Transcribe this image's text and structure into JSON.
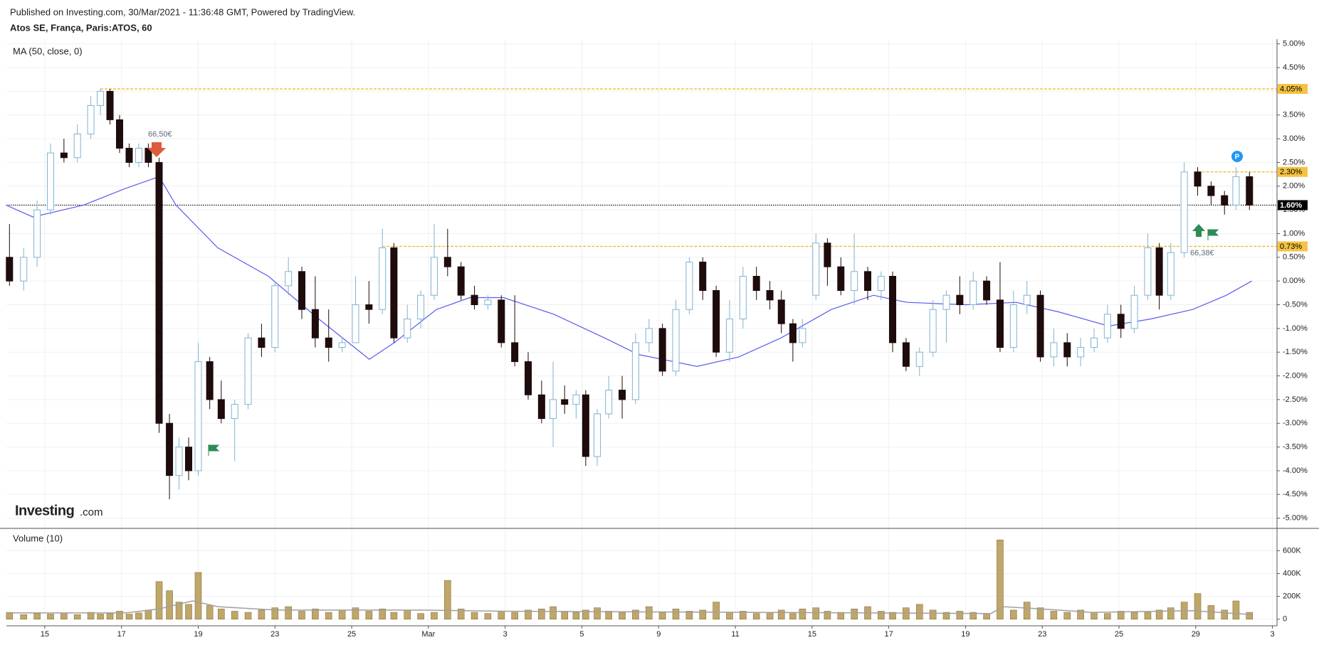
{
  "chart_data": {
    "type": "candlestick",
    "subtitle": "Published on Investing.com, 30/Mar/2021 - 11:36:48 GMT, Powered by TradingView.",
    "title": "Atos SE, França, Paris:ATOS, 60",
    "logo": [
      "Investing",
      ".com"
    ],
    "grid": true,
    "xlim": [
      -1,
      32.1
    ],
    "xticks": [
      {
        "value": 0,
        "label": "15"
      },
      {
        "value": 2,
        "label": "17"
      },
      {
        "value": 4,
        "label": "19"
      },
      {
        "value": 6,
        "label": "23"
      },
      {
        "value": 8,
        "label": "25"
      },
      {
        "value": 10,
        "label": "Mar"
      },
      {
        "value": 12,
        "label": "3"
      },
      {
        "value": 14,
        "label": "5"
      },
      {
        "value": 16,
        "label": "9"
      },
      {
        "value": 18,
        "label": "11"
      },
      {
        "value": 20,
        "label": "15"
      },
      {
        "value": 22,
        "label": "17"
      },
      {
        "value": 24,
        "label": "19"
      },
      {
        "value": 26,
        "label": "23"
      },
      {
        "value": 28,
        "label": "25"
      },
      {
        "value": 30,
        "label": "29"
      },
      {
        "value": 32,
        "label": "3"
      }
    ],
    "ylim": [
      -5.2,
      5.1
    ],
    "yticks": [
      {
        "value": 5,
        "label": "5.00%"
      },
      {
        "value": 4.5,
        "label": "4.50%"
      },
      {
        "value": 4,
        "label": "4.00%"
      },
      {
        "value": 3.5,
        "label": "3.50%"
      },
      {
        "value": 3,
        "label": "3.00%"
      },
      {
        "value": 2.5,
        "label": "2.50%"
      },
      {
        "value": 2,
        "label": "2.00%"
      },
      {
        "value": 1.5,
        "label": "1.50%"
      },
      {
        "value": 1,
        "label": "1.00%"
      },
      {
        "value": 0.5,
        "label": "0.50%"
      },
      {
        "value": 0,
        "label": "0.00%"
      },
      {
        "value": -0.5,
        "label": "-0.50%"
      },
      {
        "value": -1,
        "label": "-1.00%"
      },
      {
        "value": -1.5,
        "label": "-1.50%"
      },
      {
        "value": -2,
        "label": "-2.00%"
      },
      {
        "value": -2.5,
        "label": "-2.50%"
      },
      {
        "value": -3,
        "label": "-3.00%"
      },
      {
        "value": -3.5,
        "label": "-3.50%"
      },
      {
        "value": -4,
        "label": "-4.00%"
      },
      {
        "value": -4.5,
        "label": "-4.50%"
      },
      {
        "value": -5,
        "label": "-5.00%"
      }
    ],
    "up_color": "#ffffff",
    "down_color": "#1e0b0b",
    "wick_color": "#7fb3d5",
    "candles": {
      "x": [
        -0.92,
        -0.55,
        -0.2,
        0.15,
        0.5,
        0.85,
        1.2,
        1.45,
        1.7,
        1.95,
        2.2,
        2.45,
        2.7,
        2.98,
        3.25,
        3.5,
        3.75,
        4.0,
        4.3,
        4.6,
        4.95,
        5.3,
        5.65,
        6.0,
        6.35,
        6.7,
        7.05,
        7.4,
        7.75,
        8.1,
        8.45,
        8.8,
        9.1,
        9.45,
        9.8,
        10.15,
        10.5,
        10.85,
        11.2,
        11.55,
        11.9,
        12.25,
        12.6,
        12.95,
        13.25,
        13.55,
        13.85,
        14.1,
        14.4,
        14.7,
        15.05,
        15.4,
        15.75,
        16.1,
        16.45,
        16.8,
        17.15,
        17.5,
        17.85,
        18.2,
        18.55,
        18.9,
        19.2,
        19.5,
        19.75,
        20.1,
        20.4,
        20.75,
        21.1,
        21.45,
        21.8,
        22.1,
        22.45,
        22.8,
        23.15,
        23.5,
        23.85,
        24.2,
        24.55,
        24.9,
        25.25,
        25.6,
        25.95,
        26.3,
        26.65,
        27.0,
        27.35,
        27.7,
        28.05,
        28.4,
        28.75,
        29.05,
        29.35,
        29.7,
        30.05,
        30.4,
        30.75,
        31.05,
        31.4
      ],
      "open": [
        0.5,
        0.0,
        0.5,
        1.5,
        2.7,
        2.6,
        3.1,
        3.7,
        4.0,
        3.4,
        2.8,
        2.5,
        2.8,
        2.5,
        -3.0,
        -4.1,
        -3.5,
        -4.0,
        -1.7,
        -2.5,
        -2.9,
        -2.6,
        -1.2,
        -1.4,
        -0.1,
        0.2,
        -0.6,
        -1.2,
        -1.4,
        -1.3,
        -0.5,
        -0.6,
        0.7,
        -1.2,
        -0.8,
        -0.3,
        0.5,
        0.3,
        -0.3,
        -0.5,
        -0.4,
        -1.3,
        -1.7,
        -2.4,
        -2.9,
        -2.5,
        -2.6,
        -2.4,
        -3.7,
        -2.8,
        -2.3,
        -2.5,
        -1.3,
        -1.0,
        -1.9,
        -0.6,
        0.4,
        -0.2,
        -1.5,
        -0.8,
        0.1,
        -0.2,
        -0.4,
        -0.9,
        -1.3,
        -0.3,
        0.8,
        0.3,
        -0.2,
        0.2,
        -0.2,
        0.1,
        -1.3,
        -1.8,
        -1.5,
        -0.6,
        -0.3,
        -0.5,
        0.0,
        -0.4,
        -1.4,
        -0.5,
        -0.3,
        -1.6,
        -1.3,
        -1.6,
        -1.4,
        -1.2,
        -0.7,
        -1.0,
        -0.3,
        0.7,
        -0.3,
        0.6,
        2.3,
        2.0,
        1.8,
        1.6,
        2.2
      ],
      "high": [
        1.2,
        0.7,
        1.7,
        2.9,
        3.0,
        3.3,
        3.9,
        4.05,
        4.05,
        3.5,
        2.9,
        2.9,
        2.9,
        2.6,
        -2.8,
        -3.3,
        -3.3,
        -1.3,
        -1.6,
        -2.1,
        -2.5,
        -1.1,
        -0.9,
        0.0,
        0.5,
        0.3,
        0.1,
        -0.6,
        -1.2,
        0.1,
        0.0,
        1.1,
        0.8,
        -0.5,
        -0.2,
        1.2,
        1.1,
        0.4,
        -0.1,
        -0.3,
        -0.3,
        -0.3,
        -1.5,
        -2.1,
        -1.7,
        -2.2,
        -2.3,
        -2.3,
        -2.7,
        -2.0,
        -2.0,
        -1.1,
        -0.8,
        -0.9,
        -0.4,
        0.5,
        0.5,
        -0.1,
        -0.4,
        0.3,
        0.3,
        0.0,
        -0.2,
        -0.8,
        -0.8,
        1.0,
        0.9,
        0.5,
        1.0,
        0.3,
        0.2,
        0.2,
        -1.2,
        -1.4,
        -0.4,
        -0.2,
        0.1,
        0.2,
        0.1,
        0.4,
        -0.2,
        0.0,
        -0.2,
        -1.0,
        -1.1,
        -1.2,
        -1.0,
        -0.5,
        -0.5,
        -0.1,
        1.0,
        0.8,
        0.8,
        2.5,
        2.4,
        2.1,
        1.9,
        2.4,
        2.3
      ],
      "low": [
        -0.1,
        -0.2,
        0.3,
        1.4,
        2.5,
        2.5,
        3.0,
        3.5,
        3.3,
        2.7,
        2.4,
        2.4,
        2.4,
        -3.2,
        -4.6,
        -4.4,
        -4.2,
        -4.1,
        -2.7,
        -3.0,
        -3.8,
        -2.7,
        -1.6,
        -1.5,
        -0.3,
        -0.8,
        -1.4,
        -1.7,
        -1.5,
        -1.3,
        -0.9,
        -0.7,
        -1.3,
        -1.3,
        -1.0,
        -0.4,
        0.1,
        -0.4,
        -0.6,
        -0.6,
        -1.4,
        -1.8,
        -2.5,
        -3.0,
        -3.5,
        -2.8,
        -2.9,
        -3.9,
        -3.9,
        -2.9,
        -2.9,
        -2.6,
        -1.5,
        -2.0,
        -2.0,
        -0.7,
        -0.4,
        -1.6,
        -1.7,
        -1.0,
        -0.4,
        -0.6,
        -1.1,
        -1.7,
        -1.4,
        -0.4,
        -0.1,
        -0.3,
        -0.5,
        -0.4,
        -0.4,
        -1.5,
        -1.9,
        -2.0,
        -1.6,
        -1.3,
        -0.7,
        -0.6,
        -0.5,
        -1.5,
        -1.5,
        -0.7,
        -1.7,
        -1.8,
        -1.8,
        -1.8,
        -1.5,
        -1.3,
        -1.2,
        -1.1,
        -0.4,
        -0.6,
        -0.4,
        0.5,
        1.8,
        1.6,
        1.4,
        1.5,
        1.5
      ],
      "close": [
        0.0,
        0.5,
        1.5,
        2.7,
        2.6,
        3.1,
        3.7,
        4.0,
        3.4,
        2.8,
        2.5,
        2.8,
        2.5,
        -3.0,
        -4.1,
        -3.5,
        -4.0,
        -1.7,
        -2.5,
        -2.9,
        -2.6,
        -1.2,
        -1.4,
        -0.1,
        0.2,
        -0.6,
        -1.2,
        -1.4,
        -1.3,
        -0.5,
        -0.6,
        0.7,
        -1.2,
        -0.8,
        -0.3,
        0.5,
        0.3,
        -0.3,
        -0.5,
        -0.4,
        -1.3,
        -1.7,
        -2.4,
        -2.9,
        -2.5,
        -2.6,
        -2.4,
        -3.7,
        -2.8,
        -2.3,
        -2.5,
        -1.3,
        -1.0,
        -1.9,
        -0.6,
        0.4,
        -0.2,
        -1.5,
        -0.8,
        0.1,
        -0.2,
        -0.4,
        -0.9,
        -1.3,
        -1.0,
        0.8,
        0.3,
        -0.2,
        0.2,
        -0.2,
        0.1,
        -1.3,
        -1.8,
        -1.5,
        -0.6,
        -0.3,
        -0.5,
        0.0,
        -0.4,
        -1.4,
        -0.5,
        -0.3,
        -1.6,
        -1.3,
        -1.6,
        -1.4,
        -1.2,
        -0.7,
        -1.0,
        -0.3,
        0.7,
        -0.3,
        0.6,
        2.3,
        2.0,
        1.8,
        1.6,
        2.2,
        1.6
      ]
    },
    "ma": {
      "name": "MA (50, close, 0)",
      "color": "#5b5bf0",
      "x": [
        -1.01,
        -0.31,
        1.01,
        2.1,
        2.98,
        3.42,
        4.51,
        5.83,
        7.14,
        8.46,
        9.11,
        10.21,
        11.08,
        11.96,
        13.27,
        14.59,
        15.47,
        17.0,
        18.09,
        19.19,
        20.5,
        21.6,
        22.48,
        24.01,
        25.32,
        26.42,
        27.73,
        28.83,
        29.92,
        30.8,
        31.46
      ],
      "values": [
        1.6,
        1.35,
        1.6,
        1.95,
        2.2,
        1.6,
        0.7,
        0.1,
        -0.8,
        -1.65,
        -1.3,
        -0.6,
        -0.35,
        -0.35,
        -0.7,
        -1.2,
        -1.55,
        -1.8,
        -1.6,
        -1.2,
        -0.6,
        -0.3,
        -0.45,
        -0.5,
        -0.45,
        -0.65,
        -0.95,
        -0.8,
        -0.6,
        -0.3,
        0.0
      ]
    },
    "levels": [
      {
        "value": 4.05,
        "label": "4.05%",
        "x": 1.45,
        "color": "#f0b323"
      },
      {
        "value": 2.3,
        "label": "2.30%",
        "x": 30.05,
        "color": "#f0b323"
      },
      {
        "value": 1.6,
        "label": "1.60%",
        "x": -1,
        "color": "#000000"
      },
      {
        "value": 0.73,
        "label": "0.73%",
        "x": 8.8,
        "color": "#f0b323"
      }
    ],
    "annotations": [
      "66,50€",
      "66,38€",
      "P"
    ],
    "volume": {
      "name": "Volume (10)",
      "color": "#bfa76a",
      "ylim": [
        -58000,
        790000
      ],
      "yticks": [
        {
          "value": 0,
          "label": "0"
        },
        {
          "value": 200000,
          "label": "200K"
        },
        {
          "value": 400000,
          "label": "400K"
        },
        {
          "value": 600000,
          "label": "600K"
        }
      ],
      "values": [
        60000,
        40000,
        50000,
        45000,
        55000,
        40000,
        60000,
        45000,
        50000,
        70000,
        45000,
        55000,
        80000,
        330000,
        250000,
        150000,
        130000,
        410000,
        120000,
        90000,
        70000,
        60000,
        80000,
        100000,
        110000,
        70000,
        90000,
        60000,
        80000,
        100000,
        70000,
        90000,
        60000,
        80000,
        50000,
        60000,
        340000,
        90000,
        60000,
        50000,
        70000,
        60000,
        80000,
        90000,
        110000,
        70000,
        60000,
        80000,
        100000,
        70000,
        60000,
        80000,
        110000,
        60000,
        90000,
        70000,
        80000,
        150000,
        60000,
        70000,
        50000,
        60000,
        80000,
        50000,
        90000,
        100000,
        70000,
        60000,
        90000,
        110000,
        70000,
        60000,
        100000,
        130000,
        80000,
        60000,
        70000,
        60000,
        50000,
        695000,
        80000,
        150000,
        100000,
        70000,
        60000,
        80000,
        60000,
        50000,
        70000,
        60000,
        60000,
        80000,
        100000,
        150000,
        225000,
        120000,
        80000,
        160000,
        60000
      ],
      "ma": {
        "color": "#a0a0a0",
        "x": [
          -1.01,
          2.1,
          2.98,
          3.86,
          4.51,
          6.05,
          9.76,
          11.96,
          18.53,
          24.66,
          24.99,
          25.97,
          27.29,
          29.92,
          31.46
        ],
        "values": [
          55000,
          55000,
          90000,
          160000,
          110000,
          80000,
          80000,
          70000,
          60000,
          50000,
          110000,
          90000,
          60000,
          75000,
          40000
        ]
      }
    }
  }
}
